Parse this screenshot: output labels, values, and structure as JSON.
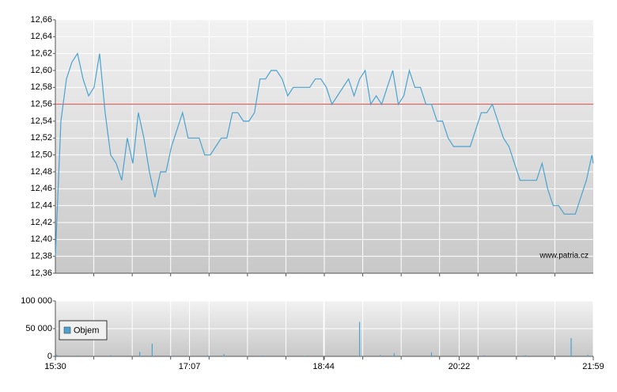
{
  "chart_data": [
    {
      "type": "line",
      "color": "#4aa3d0",
      "reference_line": {
        "value": 12.56,
        "color": "#e04848"
      },
      "annotation": "www.patria.cz",
      "xlim": [
        "15:30",
        "21:59"
      ],
      "ylim": [
        12.36,
        12.66
      ],
      "yticks": [
        {
          "value": 12.36,
          "label": "12,36"
        },
        {
          "value": 12.38,
          "label": "12,38"
        },
        {
          "value": 12.4,
          "label": "12,40"
        },
        {
          "value": 12.42,
          "label": "12,42"
        },
        {
          "value": 12.44,
          "label": "12,44"
        },
        {
          "value": 12.46,
          "label": "12,46"
        },
        {
          "value": 12.48,
          "label": "12,48"
        },
        {
          "value": 12.5,
          "label": "12,50"
        },
        {
          "value": 12.52,
          "label": "12,52"
        },
        {
          "value": 12.54,
          "label": "12,54"
        },
        {
          "value": 12.56,
          "label": "12,56"
        },
        {
          "value": 12.58,
          "label": "12,58"
        },
        {
          "value": 12.6,
          "label": "12,60"
        },
        {
          "value": 12.62,
          "label": "12,62"
        },
        {
          "value": 12.64,
          "label": "12,64"
        },
        {
          "value": 12.66,
          "label": "12,66"
        }
      ],
      "grid": true,
      "x": [
        "15:30",
        "15:34",
        "15:38",
        "15:42",
        "15:46",
        "15:50",
        "15:54",
        "15:58",
        "16:02",
        "16:06",
        "16:10",
        "16:14",
        "16:18",
        "16:22",
        "16:26",
        "16:30",
        "16:34",
        "16:38",
        "16:42",
        "16:46",
        "16:50",
        "16:54",
        "16:58",
        "17:02",
        "17:06",
        "17:10",
        "17:14",
        "17:18",
        "17:22",
        "17:26",
        "17:30",
        "17:34",
        "17:38",
        "17:42",
        "17:46",
        "17:50",
        "17:54",
        "17:58",
        "18:02",
        "18:06",
        "18:10",
        "18:14",
        "18:18",
        "18:22",
        "18:26",
        "18:30",
        "18:34",
        "18:38",
        "18:42",
        "18:46",
        "18:50",
        "18:54",
        "18:58",
        "19:02",
        "19:06",
        "19:10",
        "19:14",
        "19:18",
        "19:22",
        "19:26",
        "19:30",
        "19:34",
        "19:38",
        "19:42",
        "19:46",
        "19:50",
        "19:54",
        "19:58",
        "20:02",
        "20:06",
        "20:10",
        "20:14",
        "20:18",
        "20:22",
        "20:26",
        "20:30",
        "20:34",
        "20:38",
        "20:42",
        "20:46",
        "20:50",
        "20:54",
        "20:58",
        "21:02",
        "21:06",
        "21:10",
        "21:14",
        "21:18",
        "21:22",
        "21:26",
        "21:30",
        "21:34",
        "21:38",
        "21:42",
        "21:46",
        "21:50",
        "21:54",
        "21:58",
        "21:59"
      ],
      "values": [
        12.38,
        12.54,
        12.59,
        12.61,
        12.62,
        12.59,
        12.57,
        12.58,
        12.62,
        12.55,
        12.5,
        12.49,
        12.47,
        12.52,
        12.49,
        12.55,
        12.52,
        12.48,
        12.45,
        12.48,
        12.48,
        12.51,
        12.53,
        12.55,
        12.52,
        12.52,
        12.52,
        12.5,
        12.5,
        12.51,
        12.52,
        12.52,
        12.55,
        12.55,
        12.54,
        12.54,
        12.55,
        12.59,
        12.59,
        12.6,
        12.6,
        12.59,
        12.57,
        12.58,
        12.58,
        12.58,
        12.58,
        12.59,
        12.59,
        12.58,
        12.56,
        12.57,
        12.58,
        12.59,
        12.57,
        12.59,
        12.6,
        12.56,
        12.57,
        12.56,
        12.58,
        12.6,
        12.56,
        12.57,
        12.6,
        12.58,
        12.58,
        12.56,
        12.56,
        12.54,
        12.54,
        12.52,
        12.51,
        12.51,
        12.51,
        12.51,
        12.53,
        12.55,
        12.55,
        12.56,
        12.54,
        12.52,
        12.51,
        12.49,
        12.47,
        12.47,
        12.47,
        12.47,
        12.49,
        12.46,
        12.44,
        12.44,
        12.43,
        12.43,
        12.43,
        12.45,
        12.47,
        12.5,
        12.49
      ]
    },
    {
      "type": "bar",
      "xlim": [
        "15:30",
        "21:59"
      ],
      "xticks": [
        "15:30",
        "17:07",
        "18:44",
        "20:22",
        "21:59"
      ],
      "ylim": [
        0,
        100000
      ],
      "yticks": [
        0,
        {
          "value": 50000,
          "label": "50 000"
        },
        {
          "value": 100000,
          "label": "100 000"
        }
      ],
      "grid": true,
      "legend": "top-left",
      "x": [
        "15:31",
        "15:45",
        "16:10",
        "16:31",
        "16:40",
        "16:55",
        "17:20",
        "17:32",
        "18:00",
        "18:30",
        "19:10",
        "19:25",
        "19:35",
        "20:02",
        "20:40",
        "21:10",
        "21:43",
        "21:55"
      ],
      "series": [
        {
          "name": "Objem",
          "color": "#4aa3d0",
          "values": [
            3000,
            1500,
            2000,
            8000,
            23000,
            1500,
            2000,
            4000,
            1500,
            1000,
            62000,
            2500,
            6000,
            7000,
            2000,
            2000,
            33000,
            3000
          ]
        }
      ]
    }
  ]
}
